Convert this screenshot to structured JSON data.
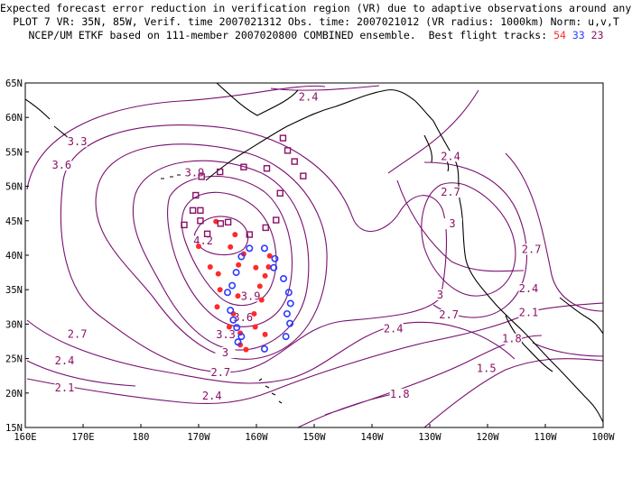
{
  "header": {
    "line1": "Expected forecast error reduction in verification region (VR) due to adaptive observations around any grid point.",
    "line2": "PLOT 7 VR: 35N, 85W, Verif. time 2007021312 Obs. time: 2007021012 (VR radius: 1000km) Norm: u,v,T",
    "line3_prefix": "NCEP/UM ETKF based on 111-member 2007020800 COMBINED ensemble.  Best flight tracks: ",
    "track_a": "54",
    "track_b": "33",
    "track_c": "23"
  },
  "colors": {
    "contour": "#7a1070",
    "track_a": "#ff2a2a",
    "track_b": "#2a3cff",
    "track_c": "#8a1066",
    "coast": "#000000"
  },
  "axes": {
    "x_ticks": [
      "160E",
      "170E",
      "180",
      "170W",
      "160W",
      "150W",
      "140W",
      "130W",
      "120W",
      "110W",
      "100W"
    ],
    "y_ticks": [
      "15N",
      "20N",
      "25N",
      "30N",
      "35N",
      "40N",
      "45N",
      "50N",
      "55N",
      "60N",
      "65N"
    ],
    "lon_range": [
      160,
      260
    ],
    "lat_range": [
      15,
      65
    ]
  },
  "contour_labels": [
    {
      "text": "2.4",
      "lon": 209,
      "lat": 62.7
    },
    {
      "text": "3.3",
      "lon": 169,
      "lat": 56.2
    },
    {
      "text": "3.6",
      "lon": 166.3,
      "lat": 52.8
    },
    {
      "text": "3.9",
      "lon": 189.3,
      "lat": 51.7
    },
    {
      "text": "4.2",
      "lon": 190.8,
      "lat": 41.8
    },
    {
      "text": "3.9",
      "lon": 199,
      "lat": 33.8
    },
    {
      "text": "3.6",
      "lon": 197.7,
      "lat": 30.7
    },
    {
      "text": "3.3",
      "lon": 194.7,
      "lat": 28.2
    },
    {
      "text": "3",
      "lon": 194.6,
      "lat": 25.6
    },
    {
      "text": "2.7",
      "lon": 169,
      "lat": 28.3
    },
    {
      "text": "2.4",
      "lon": 166.8,
      "lat": 24.4
    },
    {
      "text": "2.1",
      "lon": 166.8,
      "lat": 20.5
    },
    {
      "text": "2.7",
      "lon": 193.8,
      "lat": 22.7
    },
    {
      "text": "2.4",
      "lon": 192.3,
      "lat": 19.3
    },
    {
      "text": "2.4",
      "lon": 233.6,
      "lat": 54.1
    },
    {
      "text": "2.7",
      "lon": 233.6,
      "lat": 48.9
    },
    {
      "text": "3",
      "lon": 233.9,
      "lat": 44.3
    },
    {
      "text": "2.7",
      "lon": 247.6,
      "lat": 40.6
    },
    {
      "text": "3",
      "lon": 231.8,
      "lat": 34.0
    },
    {
      "text": "2.7",
      "lon": 233.3,
      "lat": 31.1
    },
    {
      "text": "2.4",
      "lon": 247.1,
      "lat": 34.9
    },
    {
      "text": "2.4",
      "lon": 223.7,
      "lat": 29.1
    },
    {
      "text": "2.1",
      "lon": 247.1,
      "lat": 31.4
    },
    {
      "text": "1.8",
      "lon": 244.2,
      "lat": 27.6
    },
    {
      "text": "1.5",
      "lon": 239.8,
      "lat": 23.3
    },
    {
      "text": "1.8",
      "lon": 224.8,
      "lat": 19.6
    }
  ],
  "tracks": {
    "track_54": [
      [
        193.0,
        44.9
      ],
      [
        196.3,
        43.0
      ],
      [
        195.5,
        41.2
      ],
      [
        197.8,
        40.2
      ],
      [
        196.9,
        38.6
      ],
      [
        199.9,
        38.2
      ],
      [
        202.3,
        39.9
      ],
      [
        202.1,
        38.3
      ],
      [
        190.0,
        41.3
      ],
      [
        192.0,
        38.3
      ],
      [
        193.4,
        37.3
      ],
      [
        201.5,
        37.0
      ],
      [
        200.6,
        35.5
      ],
      [
        193.7,
        35.0
      ],
      [
        196.8,
        34.1
      ],
      [
        200.9,
        33.5
      ],
      [
        193.2,
        32.5
      ],
      [
        196.0,
        31.5
      ],
      [
        199.6,
        31.5
      ],
      [
        195.3,
        29.6
      ],
      [
        199.8,
        29.6
      ],
      [
        197.2,
        28.7
      ],
      [
        201.5,
        28.5
      ],
      [
        198.2,
        26.3
      ],
      [
        197.2,
        27.0
      ]
    ],
    "track_33": [
      [
        198.8,
        41.0
      ],
      [
        201.4,
        41.0
      ],
      [
        197.4,
        39.8
      ],
      [
        203.2,
        39.5
      ],
      [
        203.0,
        38.2
      ],
      [
        196.5,
        37.5
      ],
      [
        204.7,
        36.6
      ],
      [
        195.8,
        35.6
      ],
      [
        195.0,
        34.6
      ],
      [
        205.6,
        34.6
      ],
      [
        205.9,
        33.0
      ],
      [
        195.5,
        32.0
      ],
      [
        205.3,
        31.5
      ],
      [
        196.0,
        30.6
      ],
      [
        205.8,
        30.1
      ],
      [
        196.6,
        29.5
      ],
      [
        197.4,
        28.2
      ],
      [
        205.1,
        28.2
      ],
      [
        196.8,
        27.4
      ],
      [
        201.4,
        26.4
      ]
    ],
    "track_23": [
      [
        205.4,
        55.2
      ],
      [
        204.6,
        57.0
      ],
      [
        206.6,
        53.6
      ],
      [
        197.8,
        52.8
      ],
      [
        201.8,
        52.6
      ],
      [
        208.1,
        51.5
      ],
      [
        193.7,
        52.1
      ],
      [
        190.5,
        51.4
      ],
      [
        204.1,
        49.0
      ],
      [
        189.5,
        48.7
      ],
      [
        190.3,
        46.5
      ],
      [
        190.3,
        45.0
      ],
      [
        203.4,
        45.1
      ],
      [
        189.0,
        46.5
      ],
      [
        201.6,
        44.0
      ],
      [
        195.1,
        44.8
      ],
      [
        193.8,
        44.6
      ],
      [
        191.5,
        43.1
      ],
      [
        198.8,
        43.0
      ],
      [
        187.5,
        44.4
      ]
    ]
  }
}
